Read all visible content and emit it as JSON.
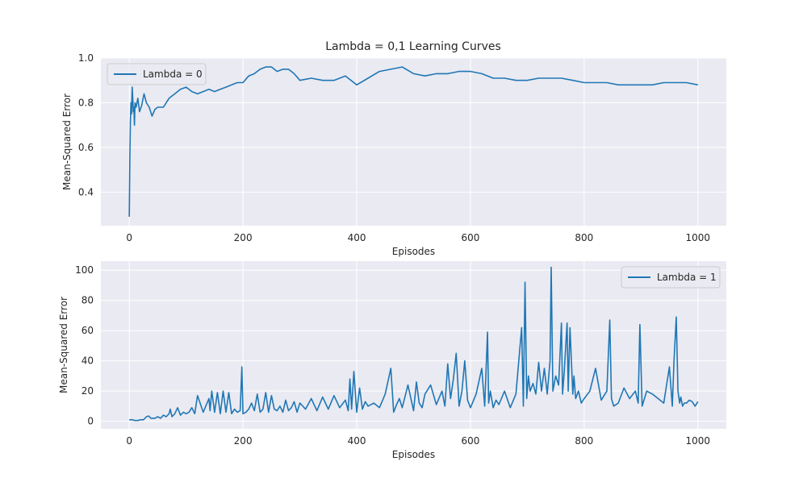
{
  "title": "Lambda = 0,1 Learning Curves",
  "colors": {
    "line": "#1f77b4",
    "axes_face": "#eaeaf2",
    "grid": "#ffffff",
    "text": "#262626"
  },
  "chart_data": [
    {
      "type": "line",
      "xlabel": "Episodes",
      "ylabel": "Mean-Squared Error",
      "xlim": [
        -50,
        1050
      ],
      "ylim": [
        0.25,
        1.0
      ],
      "xticks": [
        0,
        200,
        400,
        600,
        800,
        1000
      ],
      "yticks": [
        0.4,
        0.6,
        0.8,
        1.0
      ],
      "xtick_labels": [
        "0",
        "200",
        "400",
        "600",
        "800",
        "1000"
      ],
      "ytick_labels": [
        "0.4",
        "0.6",
        "0.8",
        "1.0"
      ],
      "grid": true,
      "legend_position": "top-left",
      "series": [
        {
          "name": "Lambda = 0",
          "x": [
            0,
            1,
            2,
            3,
            4,
            5,
            6,
            7,
            8,
            9,
            10,
            12,
            15,
            18,
            22,
            26,
            30,
            35,
            40,
            45,
            50,
            60,
            70,
            80,
            90,
            100,
            110,
            120,
            130,
            140,
            150,
            160,
            170,
            180,
            190,
            200,
            210,
            220,
            230,
            240,
            250,
            260,
            270,
            280,
            290,
            300,
            320,
            340,
            360,
            380,
            400,
            420,
            440,
            460,
            480,
            500,
            520,
            540,
            560,
            580,
            600,
            620,
            640,
            660,
            680,
            700,
            720,
            740,
            760,
            780,
            800,
            820,
            840,
            860,
            880,
            900,
            920,
            940,
            960,
            980,
            1000
          ],
          "y": [
            0.29,
            0.55,
            0.72,
            0.8,
            0.75,
            0.87,
            0.82,
            0.76,
            0.78,
            0.7,
            0.8,
            0.78,
            0.82,
            0.76,
            0.79,
            0.84,
            0.8,
            0.78,
            0.74,
            0.77,
            0.78,
            0.78,
            0.82,
            0.84,
            0.86,
            0.87,
            0.85,
            0.84,
            0.85,
            0.86,
            0.85,
            0.86,
            0.87,
            0.88,
            0.89,
            0.89,
            0.92,
            0.93,
            0.95,
            0.96,
            0.96,
            0.94,
            0.95,
            0.95,
            0.93,
            0.9,
            0.91,
            0.9,
            0.9,
            0.92,
            0.88,
            0.91,
            0.94,
            0.95,
            0.96,
            0.93,
            0.92,
            0.93,
            0.93,
            0.94,
            0.94,
            0.93,
            0.91,
            0.91,
            0.9,
            0.9,
            0.91,
            0.91,
            0.91,
            0.9,
            0.89,
            0.89,
            0.89,
            0.88,
            0.88,
            0.88,
            0.88,
            0.89,
            0.89,
            0.89,
            0.88
          ]
        }
      ]
    },
    {
      "type": "line",
      "xlabel": "Episodes",
      "ylabel": "Mean-Squared Error",
      "xlim": [
        -50,
        1050
      ],
      "ylim": [
        -5,
        106
      ],
      "xticks": [
        0,
        200,
        400,
        600,
        800,
        1000
      ],
      "yticks": [
        0,
        20,
        40,
        60,
        80,
        100
      ],
      "xtick_labels": [
        "0",
        "200",
        "400",
        "600",
        "800",
        "1000"
      ],
      "ytick_labels": [
        "0",
        "20",
        "40",
        "60",
        "80",
        "100"
      ],
      "grid": true,
      "legend_position": "top-right",
      "series": [
        {
          "name": "Lambda = 1",
          "x": [
            0,
            5,
            10,
            15,
            20,
            25,
            30,
            34,
            38,
            45,
            50,
            55,
            60,
            65,
            70,
            72,
            75,
            80,
            85,
            90,
            95,
            100,
            105,
            110,
            115,
            120,
            130,
            140,
            142,
            145,
            150,
            155,
            160,
            165,
            170,
            175,
            180,
            185,
            190,
            195,
            198,
            200,
            205,
            210,
            215,
            220,
            225,
            230,
            235,
            240,
            245,
            250,
            255,
            260,
            265,
            270,
            275,
            280,
            285,
            290,
            295,
            300,
            310,
            320,
            330,
            340,
            350,
            360,
            370,
            380,
            385,
            388,
            391,
            395,
            400,
            405,
            410,
            415,
            420,
            430,
            440,
            450,
            460,
            465,
            470,
            475,
            480,
            490,
            500,
            505,
            510,
            515,
            520,
            530,
            540,
            550,
            555,
            560,
            565,
            570,
            575,
            580,
            585,
            590,
            595,
            600,
            610,
            620,
            625,
            630,
            632,
            635,
            640,
            645,
            650,
            660,
            670,
            680,
            690,
            693,
            696,
            699,
            702,
            705,
            710,
            715,
            720,
            725,
            730,
            735,
            740,
            742,
            745,
            750,
            755,
            760,
            762,
            765,
            770,
            772,
            775,
            780,
            782,
            785,
            790,
            795,
            800,
            810,
            820,
            830,
            840,
            845,
            848,
            852,
            860,
            870,
            880,
            890,
            895,
            898,
            902,
            910,
            920,
            930,
            940,
            950,
            955,
            958,
            962,
            965,
            968,
            970,
            973,
            976,
            980,
            985,
            990,
            995,
            1000
          ],
          "y": [
            1,
            1,
            0.5,
            0.5,
            1,
            1,
            3,
            3.5,
            2,
            2,
            3,
            2,
            4,
            3,
            5,
            8,
            3,
            5,
            9,
            4,
            6,
            5,
            6,
            9,
            5,
            17,
            6,
            15,
            7,
            20,
            6,
            19,
            5,
            20,
            6,
            19,
            5,
            8,
            6,
            7,
            36,
            5,
            6,
            8,
            12,
            7,
            18,
            6,
            8,
            19,
            6,
            17,
            8,
            7,
            10,
            6,
            14,
            7,
            9,
            13,
            6,
            12,
            8,
            15,
            7,
            16,
            8,
            17,
            9,
            14,
            7,
            28,
            8,
            33,
            6,
            22,
            8,
            13,
            10,
            12,
            9,
            18,
            35,
            6,
            11,
            15,
            9,
            24,
            7,
            26,
            12,
            9,
            18,
            24,
            11,
            20,
            10,
            38,
            15,
            28,
            45,
            10,
            20,
            40,
            14,
            9,
            18,
            35,
            10,
            59,
            12,
            20,
            9,
            14,
            11,
            20,
            9,
            18,
            62,
            10,
            92,
            15,
            30,
            20,
            25,
            18,
            39,
            20,
            35,
            18,
            40,
            102,
            20,
            30,
            24,
            65,
            18,
            33,
            65,
            20,
            62,
            18,
            30,
            15,
            20,
            12,
            15,
            20,
            35,
            14,
            20,
            67,
            15,
            10,
            12,
            22,
            15,
            20,
            12,
            64,
            10,
            20,
            18,
            15,
            12,
            36,
            10,
            40,
            69,
            20,
            12,
            16,
            10,
            12,
            12,
            14,
            13,
            10,
            13
          ]
        }
      ]
    }
  ]
}
